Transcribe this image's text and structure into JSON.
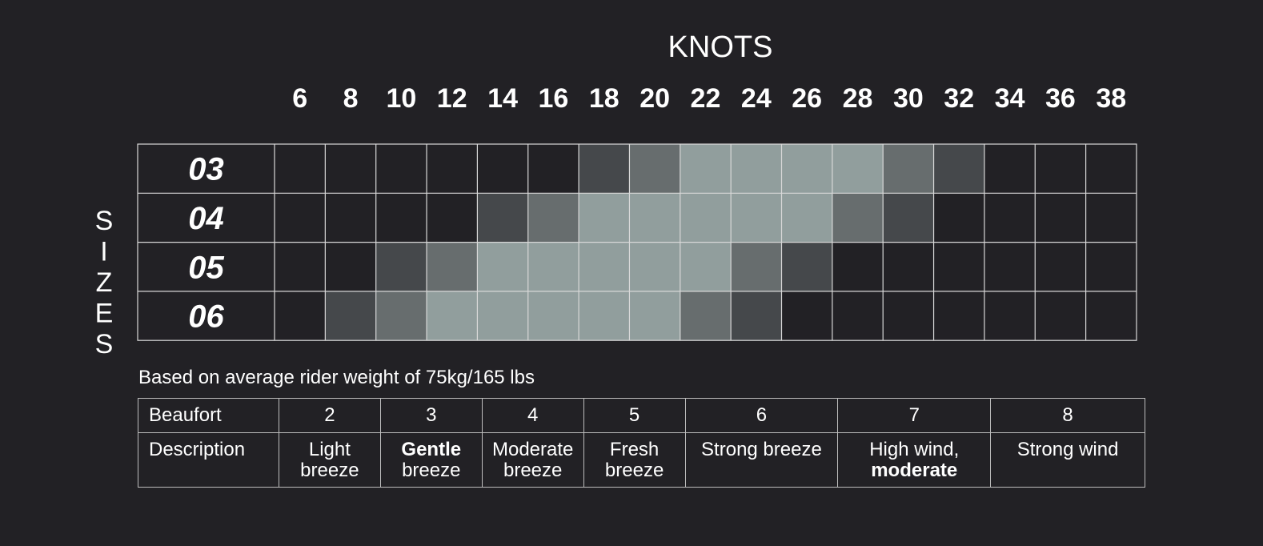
{
  "chart_data": {
    "type": "heatmap",
    "title": "KNOTS",
    "ylabel": "SIZES",
    "x": [
      6,
      8,
      10,
      12,
      14,
      16,
      18,
      20,
      22,
      24,
      26,
      28,
      30,
      32,
      34,
      36,
      38
    ],
    "rows": [
      "03",
      "04",
      "05",
      "06"
    ],
    "levels": [
      [
        0,
        0,
        0,
        0,
        0,
        0,
        1,
        2,
        3,
        3,
        3,
        3,
        2,
        1,
        0,
        0,
        0
      ],
      [
        0,
        0,
        0,
        0,
        1,
        2,
        3,
        3,
        3,
        3,
        3,
        2,
        1,
        0,
        0,
        0,
        0
      ],
      [
        0,
        0,
        1,
        2,
        3,
        3,
        3,
        3,
        3,
        2,
        1,
        0,
        0,
        0,
        0,
        0,
        0
      ],
      [
        0,
        1,
        2,
        3,
        3,
        3,
        3,
        3,
        2,
        1,
        0,
        0,
        0,
        0,
        0,
        0,
        0
      ]
    ],
    "colors": {
      "background": "#222125",
      "empty": "#222125",
      "low": "#45484b",
      "medium": "#676d6e",
      "high": "#919e9d",
      "grid": "#d8d8d8"
    }
  },
  "note": "Based on average rider weight of 75kg/165 lbs",
  "beaufort_table": {
    "row1_header": "Beaufort",
    "row2_header": "Description",
    "columns": [
      {
        "scale": "2",
        "desc_line1": "Light",
        "desc_line2": "breeze"
      },
      {
        "scale": "3",
        "desc_line1": "Gentle",
        "desc_line2": "breeze"
      },
      {
        "scale": "4",
        "desc_line1": "Moderate",
        "desc_line2": "breeze"
      },
      {
        "scale": "5",
        "desc_line1": "Fresh",
        "desc_line2": "breeze"
      },
      {
        "scale": "6",
        "desc_line1": "Strong breeze",
        "desc_line2": ""
      },
      {
        "scale": "7",
        "desc_line1": "High wind,",
        "desc_line2": "moderate"
      },
      {
        "scale": "8",
        "desc_line1": "Strong wind",
        "desc_line2": ""
      }
    ]
  }
}
